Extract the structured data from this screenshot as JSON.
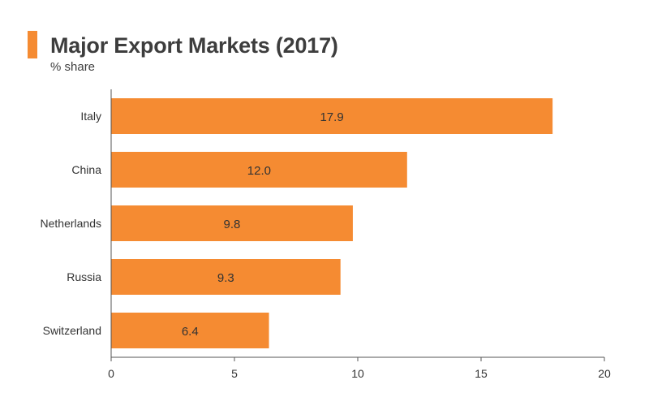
{
  "colors": {
    "bar": "#f58b32",
    "accent": "#f58b32",
    "text": "#333333",
    "axis": "#555555"
  },
  "chart_data": {
    "type": "bar",
    "orientation": "horizontal",
    "title": "Major Export Markets (2017)",
    "subtitle": "% share",
    "categories": [
      "Italy",
      "China",
      "Netherlands",
      "Russia",
      "Switzerland"
    ],
    "values": [
      17.9,
      12.0,
      9.8,
      9.3,
      6.4
    ],
    "value_labels": [
      "17.9",
      "12.0",
      "9.8",
      "9.3",
      "6.4"
    ],
    "xlim": [
      0,
      20
    ],
    "xticks": [
      0,
      5,
      10,
      15,
      20
    ],
    "xlabel": "",
    "ylabel": "",
    "grid": false,
    "legend": "none"
  }
}
